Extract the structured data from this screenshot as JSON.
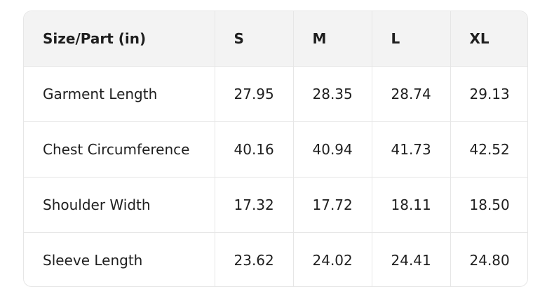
{
  "table": {
    "header": [
      "Size/Part (in)",
      "S",
      "M",
      "L",
      "XL"
    ],
    "rows": [
      [
        "Garment Length",
        "27.95",
        "28.35",
        "28.74",
        "29.13"
      ],
      [
        "Chest Circumference",
        "40.16",
        "40.94",
        "41.73",
        "42.52"
      ],
      [
        "Shoulder Width",
        "17.32",
        "17.72",
        "18.11",
        "18.50"
      ],
      [
        "Sleeve Length",
        "23.62",
        "24.02",
        "24.41",
        "24.80"
      ]
    ]
  }
}
